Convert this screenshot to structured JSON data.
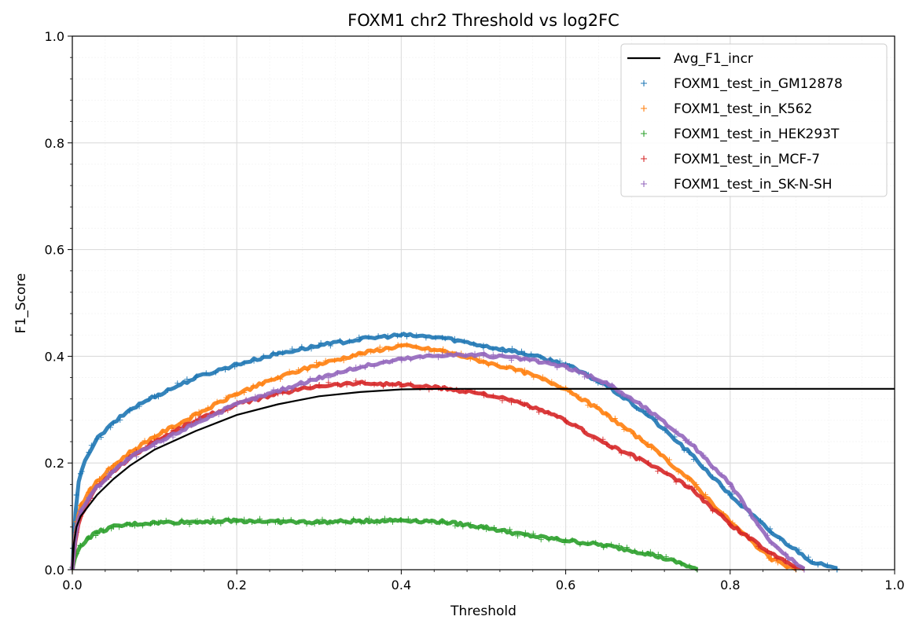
{
  "chart_data": {
    "type": "scatter",
    "title": "FOXM1 chr2 Threshold vs log2FC",
    "xlabel": "Threshold",
    "ylabel": "F1_Score",
    "xlim": [
      0.0,
      1.0
    ],
    "ylim": [
      0.0,
      1.0
    ],
    "xticks": [
      "0.0",
      "0.2",
      "0.4",
      "0.6",
      "0.8",
      "1.0"
    ],
    "yticks": [
      "0.0",
      "0.2",
      "0.4",
      "0.6",
      "0.8",
      "1.0"
    ],
    "grid": true,
    "legend_position": "top-right",
    "series": [
      {
        "name": "Avg_F1_incr",
        "kind": "line",
        "color": "#000000",
        "x": [
          0.0,
          0.002,
          0.005,
          0.01,
          0.02,
          0.03,
          0.05,
          0.07,
          0.1,
          0.15,
          0.2,
          0.25,
          0.3,
          0.35,
          0.4,
          0.45,
          0.5,
          0.6,
          0.7,
          0.8,
          0.9,
          1.0
        ],
        "y": [
          0.0,
          0.05,
          0.08,
          0.1,
          0.12,
          0.14,
          0.17,
          0.195,
          0.225,
          0.26,
          0.29,
          0.31,
          0.325,
          0.333,
          0.338,
          0.339,
          0.339,
          0.339,
          0.339,
          0.339,
          0.339,
          0.339
        ]
      },
      {
        "name": "FOXM1_test_in_GM12878",
        "kind": "markers",
        "color": "#1f77b4",
        "x": [
          0.0,
          0.005,
          0.01,
          0.02,
          0.03,
          0.05,
          0.07,
          0.1,
          0.15,
          0.2,
          0.25,
          0.3,
          0.35,
          0.4,
          0.45,
          0.5,
          0.55,
          0.6,
          0.65,
          0.7,
          0.75,
          0.8,
          0.85,
          0.9,
          0.93
        ],
        "y": [
          0.0,
          0.14,
          0.18,
          0.22,
          0.245,
          0.275,
          0.3,
          0.325,
          0.36,
          0.385,
          0.405,
          0.42,
          0.432,
          0.44,
          0.435,
          0.42,
          0.405,
          0.385,
          0.345,
          0.29,
          0.22,
          0.14,
          0.07,
          0.015,
          0.0
        ]
      },
      {
        "name": "FOXM1_test_in_K562",
        "kind": "markers",
        "color": "#ff7f0e",
        "x": [
          0.0,
          0.005,
          0.01,
          0.02,
          0.03,
          0.05,
          0.07,
          0.1,
          0.15,
          0.2,
          0.25,
          0.3,
          0.35,
          0.4,
          0.45,
          0.5,
          0.55,
          0.6,
          0.65,
          0.7,
          0.75,
          0.8,
          0.85,
          0.88
        ],
        "y": [
          0.0,
          0.09,
          0.12,
          0.145,
          0.165,
          0.195,
          0.22,
          0.25,
          0.29,
          0.33,
          0.36,
          0.385,
          0.405,
          0.42,
          0.41,
          0.39,
          0.37,
          0.34,
          0.29,
          0.235,
          0.17,
          0.09,
          0.02,
          0.0
        ]
      },
      {
        "name": "FOXM1_test_in_HEK293T",
        "kind": "markers",
        "color": "#2ca02c",
        "x": [
          0.0,
          0.005,
          0.01,
          0.02,
          0.03,
          0.05,
          0.07,
          0.1,
          0.15,
          0.2,
          0.25,
          0.3,
          0.35,
          0.4,
          0.45,
          0.5,
          0.55,
          0.6,
          0.65,
          0.7,
          0.74,
          0.76
        ],
        "y": [
          0.0,
          0.03,
          0.045,
          0.06,
          0.07,
          0.08,
          0.085,
          0.088,
          0.09,
          0.092,
          0.09,
          0.089,
          0.091,
          0.093,
          0.09,
          0.08,
          0.065,
          0.055,
          0.045,
          0.03,
          0.012,
          0.0
        ]
      },
      {
        "name": "FOXM1_test_in_MCF-7",
        "kind": "markers",
        "color": "#d62728",
        "x": [
          0.0,
          0.005,
          0.01,
          0.02,
          0.03,
          0.05,
          0.07,
          0.1,
          0.15,
          0.2,
          0.25,
          0.3,
          0.35,
          0.4,
          0.45,
          0.5,
          0.55,
          0.6,
          0.65,
          0.7,
          0.75,
          0.8,
          0.85,
          0.89
        ],
        "y": [
          0.0,
          0.07,
          0.1,
          0.13,
          0.155,
          0.185,
          0.21,
          0.24,
          0.28,
          0.31,
          0.33,
          0.345,
          0.35,
          0.347,
          0.34,
          0.33,
          0.31,
          0.28,
          0.235,
          0.2,
          0.155,
          0.085,
          0.03,
          0.0
        ]
      },
      {
        "name": "FOXM1_test_in_SK-N-SH",
        "kind": "markers",
        "color": "#9467bd",
        "x": [
          0.0,
          0.005,
          0.01,
          0.02,
          0.03,
          0.05,
          0.07,
          0.1,
          0.15,
          0.2,
          0.25,
          0.3,
          0.35,
          0.4,
          0.45,
          0.5,
          0.55,
          0.6,
          0.65,
          0.7,
          0.75,
          0.8,
          0.85,
          0.89
        ],
        "y": [
          0.0,
          0.08,
          0.11,
          0.135,
          0.155,
          0.185,
          0.21,
          0.235,
          0.275,
          0.31,
          0.335,
          0.36,
          0.38,
          0.395,
          0.403,
          0.402,
          0.395,
          0.38,
          0.35,
          0.3,
          0.24,
          0.16,
          0.05,
          0.0
        ]
      }
    ]
  }
}
